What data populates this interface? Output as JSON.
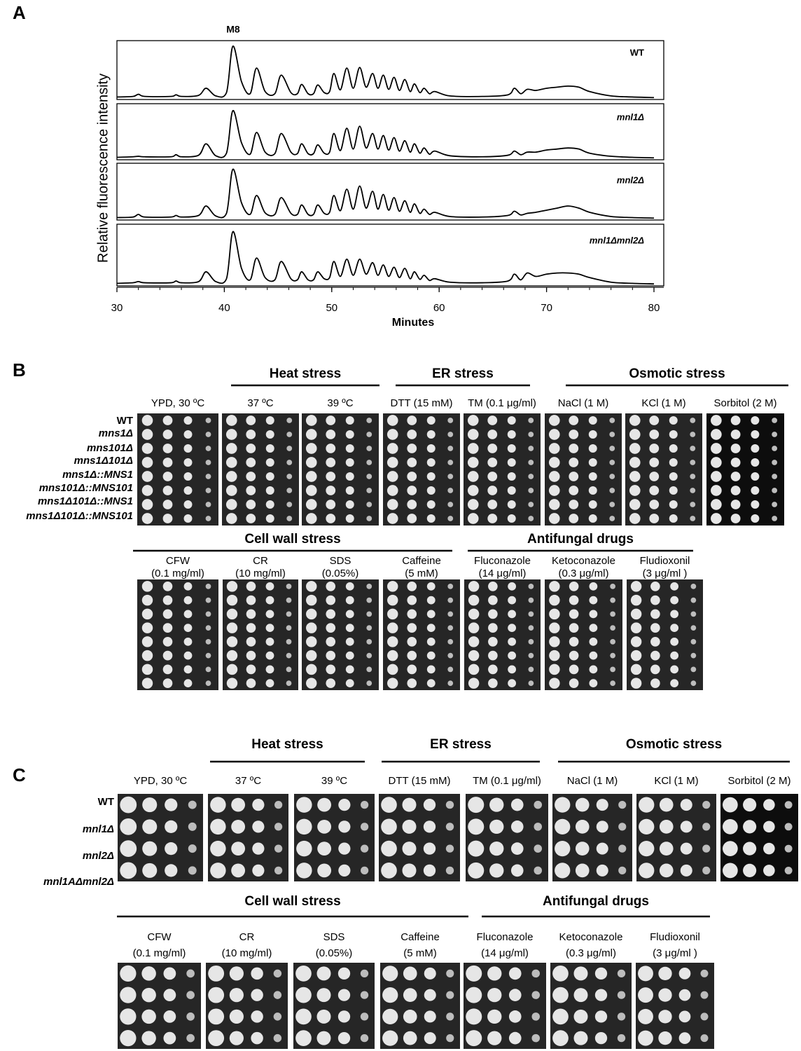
{
  "panel_labels": [
    "A",
    "B",
    "C"
  ],
  "chart_data": {
    "type": "line",
    "xlabel": "Minutes",
    "ylabel": "Relative fluorescence intensity",
    "annotation": "M8",
    "xlim": [
      30,
      80
    ],
    "xticks": [
      30,
      40,
      50,
      60,
      70,
      80
    ],
    "ylim": [
      0,
      100
    ],
    "x": [
      30,
      31.5,
      32,
      32.6,
      35,
      35.5,
      36,
      37.6,
      38.3,
      39.2,
      40.2,
      40.8,
      41.6,
      42.4,
      43,
      43.8,
      44.7,
      45.3,
      46.2,
      46.8,
      47.2,
      47.8,
      48.3,
      48.7,
      49.3,
      49.8,
      50.2,
      50.8,
      51.4,
      52,
      52.6,
      53.2,
      53.8,
      54.3,
      54.8,
      55.3,
      55.8,
      56.3,
      56.8,
      57.3,
      57.7,
      58.2,
      58.6,
      59.1,
      59.6,
      61,
      64,
      66.4,
      67,
      67.6,
      68.2,
      69,
      70,
      71,
      72,
      73,
      74,
      76,
      78,
      80
    ],
    "series": [
      {
        "name": "WT",
        "color": "#000000",
        "values": [
          2,
          3,
          7,
          3,
          3,
          6,
          3,
          5,
          18,
          4,
          10,
          95,
          30,
          8,
          55,
          12,
          8,
          42,
          10,
          8,
          25,
          8,
          8,
          24,
          10,
          12,
          45,
          15,
          55,
          18,
          56,
          20,
          45,
          18,
          42,
          16,
          38,
          14,
          34,
          12,
          26,
          10,
          18,
          8,
          12,
          4,
          3,
          6,
          18,
          8,
          16,
          14,
          18,
          20,
          22,
          20,
          12,
          4,
          2,
          1
        ]
      },
      {
        "name": "mnl1Δ",
        "color": "#000000",
        "values": [
          2,
          3,
          4,
          3,
          3,
          7,
          3,
          6,
          28,
          5,
          10,
          92,
          30,
          8,
          50,
          12,
          9,
          48,
          12,
          9,
          28,
          9,
          9,
          26,
          10,
          12,
          48,
          15,
          58,
          18,
          62,
          20,
          48,
          18,
          44,
          16,
          40,
          14,
          34,
          12,
          28,
          10,
          20,
          8,
          14,
          5,
          3,
          6,
          14,
          7,
          12,
          12,
          16,
          18,
          20,
          18,
          10,
          4,
          2,
          1
        ]
      },
      {
        "name": "mnl2Δ",
        "color": "#000000",
        "values": [
          2,
          3,
          8,
          3,
          3,
          6,
          3,
          6,
          24,
          5,
          10,
          94,
          30,
          8,
          44,
          11,
          8,
          40,
          10,
          8,
          26,
          8,
          8,
          26,
          10,
          12,
          44,
          15,
          56,
          18,
          62,
          20,
          52,
          18,
          46,
          16,
          40,
          14,
          34,
          12,
          28,
          10,
          18,
          8,
          12,
          4,
          3,
          6,
          14,
          7,
          10,
          12,
          16,
          20,
          24,
          20,
          12,
          4,
          2,
          1
        ]
      },
      {
        "name": "mnl1Δmnl2Δ",
        "color": "#000000",
        "values": [
          2,
          3,
          5,
          3,
          3,
          6,
          3,
          5,
          22,
          5,
          10,
          92,
          28,
          8,
          46,
          12,
          8,
          40,
          10,
          8,
          22,
          8,
          8,
          22,
          10,
          12,
          40,
          14,
          44,
          16,
          44,
          18,
          38,
          16,
          34,
          14,
          30,
          12,
          28,
          10,
          22,
          9,
          16,
          7,
          10,
          4,
          3,
          6,
          18,
          8,
          20,
          14,
          18,
          20,
          20,
          18,
          12,
          4,
          2,
          1
        ]
      }
    ]
  },
  "panel_b": {
    "strains": [
      "WT",
      "mns1Δ",
      "mns101Δ",
      "mns1Δ101Δ",
      "mns1Δ::MNS1",
      "mns101Δ::MNS101",
      "mns1Δ101Δ::MNS1",
      "mns1Δ101Δ::MNS101"
    ],
    "row1": {
      "groups": [
        "Heat stress",
        "ER stress",
        "Osmotic stress"
      ],
      "conditions": [
        "YPD, 30 ºC",
        "37 ºC",
        "39 ºC",
        "DTT (15 mM)",
        "TM (0.1 μg/ml)",
        "NaCl (1 M)",
        "KCl (1 M)",
        "Sorbitol (2 M)"
      ]
    },
    "row2": {
      "groups": [
        "Cell wall stress",
        "Antifungal drugs"
      ],
      "conditions": [
        [
          "CFW",
          "(0.1 mg/ml)"
        ],
        [
          "CR",
          "(10 mg/ml)"
        ],
        [
          "SDS",
          "(0.05%)"
        ],
        [
          "Caffeine",
          "(5 mM)"
        ],
        [
          "Fluconazole",
          "(14 μg/ml)"
        ],
        [
          "Ketoconazole",
          "(0.3 μg/ml)"
        ],
        [
          "Fludioxonil",
          "(3 μg/ml )"
        ]
      ]
    }
  },
  "panel_c": {
    "strains": [
      "WT",
      "mnl1Δ",
      "mnl2Δ",
      "mnl1AΔmnl2Δ"
    ],
    "row1": {
      "groups": [
        "Heat stress",
        "ER stress",
        "Osmotic stress"
      ],
      "conditions": [
        "YPD, 30 ºC",
        "37 ºC",
        "39 ºC",
        "DTT (15 mM)",
        "TM (0.1 μg/ml)",
        "NaCl (1 M)",
        "KCl (1 M)",
        "Sorbitol (2 M)"
      ]
    },
    "row2": {
      "groups": [
        "Cell wall stress",
        "Antifungal drugs"
      ],
      "conditions": [
        [
          "CFW",
          "(0.1 mg/ml)"
        ],
        [
          "CR",
          "(10 mg/ml)"
        ],
        [
          "SDS",
          "(0.05%)"
        ],
        [
          "Caffeine",
          "(5 mM)"
        ],
        [
          "Fluconazole",
          "(14 μg/ml)"
        ],
        [
          "Ketoconazole",
          "(0.3 μg/ml)"
        ],
        [
          "Fludioxonil",
          "(3 μg/ml )"
        ]
      ]
    }
  }
}
